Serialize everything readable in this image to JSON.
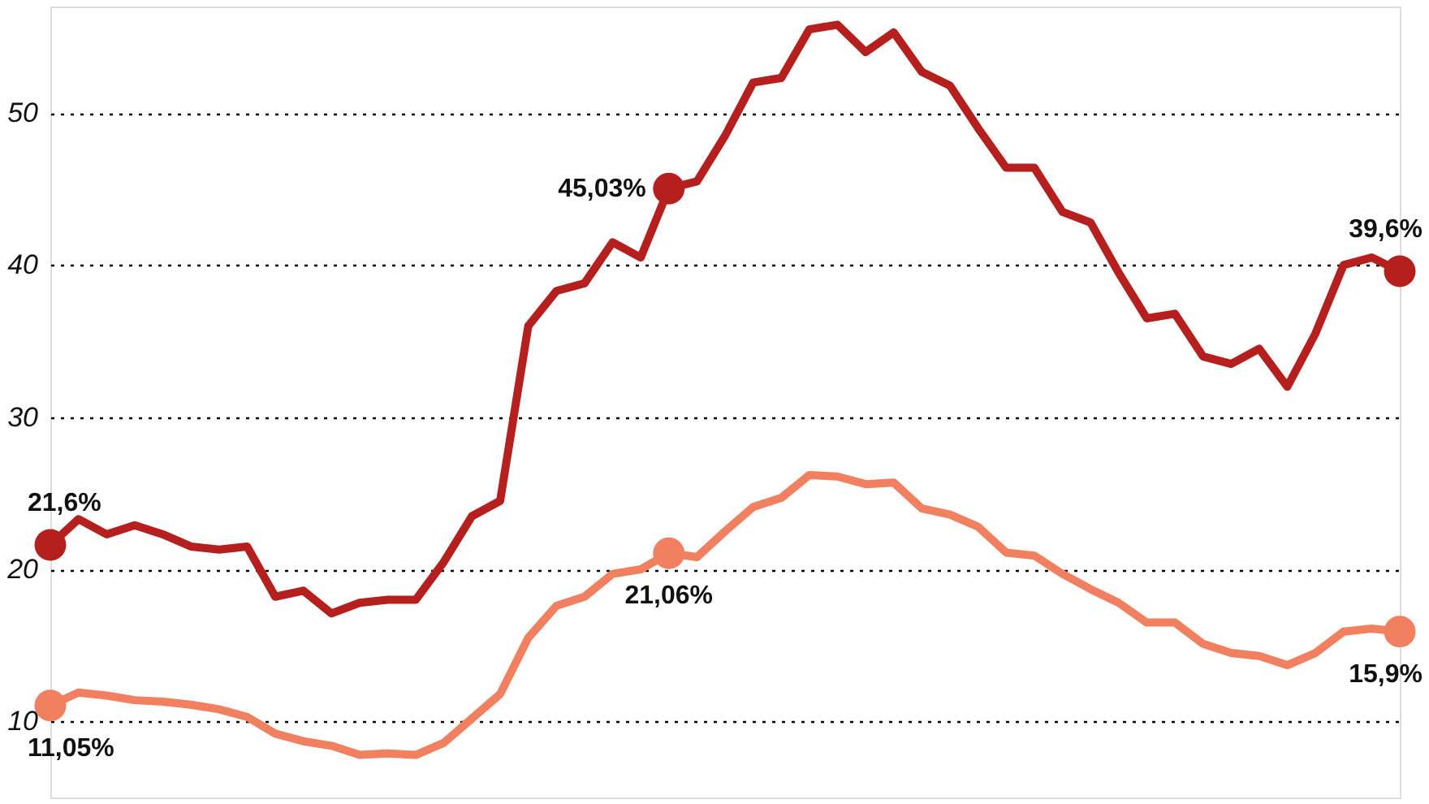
{
  "chart_data": {
    "type": "line",
    "categories": [
      null,
      null,
      null,
      null,
      null,
      null,
      null,
      null,
      null,
      null,
      null,
      null,
      null,
      null,
      null,
      null,
      null,
      null,
      null,
      null,
      null,
      null,
      null,
      null,
      null,
      null,
      null,
      null,
      null,
      null,
      null,
      null,
      null,
      null,
      null,
      null,
      null,
      null,
      null,
      null,
      null,
      null,
      null,
      null,
      null,
      null,
      null,
      null,
      null
    ],
    "series": [
      {
        "color": "#b5201e",
        "values": [
          21.6,
          23.3,
          22.3,
          22.9,
          22.3,
          21.5,
          21.3,
          21.5,
          18.2,
          18.6,
          17.1,
          17.8,
          18.0,
          18.0,
          20.5,
          23.5,
          24.5,
          36.0,
          38.3,
          38.8,
          41.5,
          40.5,
          45.03,
          45.5,
          48.5,
          52.0,
          52.3,
          55.5,
          55.8,
          54.0,
          55.3,
          52.7,
          51.8,
          49.0,
          46.4,
          46.4,
          43.5,
          42.8,
          39.5,
          36.5,
          36.8,
          34.0,
          33.5,
          34.5,
          32.0,
          35.5,
          40.0,
          40.5,
          39.6
        ],
        "value_labels": [
          "21,6%",
          null,
          null,
          null,
          null,
          null,
          null,
          null,
          null,
          null,
          null,
          null,
          null,
          null,
          null,
          null,
          null,
          null,
          null,
          null,
          null,
          null,
          "45,03%",
          null,
          null,
          null,
          null,
          null,
          null,
          null,
          null,
          null,
          null,
          null,
          null,
          null,
          null,
          null,
          null,
          null,
          null,
          null,
          null,
          null,
          null,
          null,
          null,
          null,
          "39,6%"
        ]
      },
      {
        "color": "#f08060",
        "values": [
          11.05,
          11.9,
          11.7,
          11.4,
          11.3,
          11.1,
          10.8,
          10.3,
          9.2,
          8.7,
          8.4,
          7.8,
          7.9,
          7.8,
          8.6,
          10.2,
          11.8,
          15.5,
          17.6,
          18.2,
          19.7,
          20.0,
          21.06,
          20.8,
          22.5,
          24.1,
          24.7,
          26.2,
          26.1,
          25.6,
          25.7,
          24.0,
          23.6,
          22.8,
          21.1,
          20.9,
          19.7,
          18.7,
          17.8,
          16.5,
          16.5,
          15.1,
          14.5,
          14.3,
          13.7,
          14.5,
          15.9,
          16.1,
          15.9
        ],
        "value_labels": [
          "11,05%",
          null,
          null,
          null,
          null,
          null,
          null,
          null,
          null,
          null,
          null,
          null,
          null,
          null,
          null,
          null,
          null,
          null,
          null,
          null,
          null,
          null,
          "21,06%",
          null,
          null,
          null,
          null,
          null,
          null,
          null,
          null,
          null,
          null,
          null,
          null,
          null,
          null,
          null,
          null,
          null,
          null,
          null,
          null,
          null,
          null,
          null,
          null,
          null,
          "15,9%"
        ]
      }
    ],
    "ylim": [
      5,
      57
    ],
    "yticks": [
      10,
      20,
      30,
      40,
      50
    ],
    "grid": "y",
    "tick_labels": "y",
    "marker": "none",
    "line_style": "solid"
  }
}
